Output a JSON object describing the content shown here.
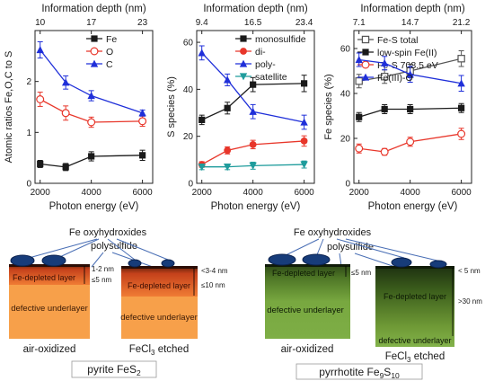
{
  "colors": {
    "black": "#1a1a1a",
    "red": "#e8362a",
    "blue": "#1f2fd9",
    "teal": "#1f9c9c",
    "gray": "#555555",
    "orange": "#f7a04a",
    "green": "#6f9a3a"
  },
  "chart_data": [
    {
      "type": "line",
      "top_xlabel": "Information depth (nm)",
      "top_ticks": [
        "10",
        "17",
        "23"
      ],
      "top_ticks_at": [
        2000,
        4000,
        6000
      ],
      "xlabel": "Photon energy (eV)",
      "ylabel": "Atomic ratios Fe,O,C to S",
      "xlim": [
        1800,
        6400
      ],
      "ylim": [
        0,
        3
      ],
      "xticks": [
        2000,
        4000,
        6000
      ],
      "yticks": [
        0,
        1,
        2
      ],
      "legend_position": "top-right",
      "series": [
        {
          "name": "Fe",
          "marker": "square",
          "color": "#1a1a1a",
          "x": [
            2000,
            3000,
            4000,
            6000
          ],
          "y": [
            0.38,
            0.32,
            0.53,
            0.55
          ],
          "err": [
            0.07,
            0.07,
            0.09,
            0.1
          ]
        },
        {
          "name": "O",
          "marker": "circle-open",
          "color": "#e8362a",
          "x": [
            2000,
            3000,
            4000,
            6000
          ],
          "y": [
            1.65,
            1.38,
            1.2,
            1.22
          ],
          "err": [
            0.14,
            0.14,
            0.1,
            0.1
          ]
        },
        {
          "name": "C",
          "marker": "triangle",
          "color": "#1f2fd9",
          "x": [
            2000,
            3000,
            4000,
            6000
          ],
          "y": [
            2.62,
            1.98,
            1.72,
            1.38
          ],
          "err": [
            0.16,
            0.13,
            0.1,
            0.06
          ]
        }
      ]
    },
    {
      "type": "line",
      "top_xlabel": "Information depth (nm)",
      "top_ticks": [
        "9.4",
        "16.5",
        "23.4"
      ],
      "top_ticks_at": [
        2000,
        4000,
        6000
      ],
      "xlabel": "Photon energy (eV)",
      "ylabel": "S species (%)",
      "xlim": [
        1800,
        6400
      ],
      "ylim": [
        0,
        65
      ],
      "xticks": [
        2000,
        4000,
        6000
      ],
      "yticks": [
        0,
        20,
        40,
        60
      ],
      "legend_position": "top-right",
      "series": [
        {
          "name": "monosulfide",
          "marker": "square",
          "color": "#1a1a1a",
          "x": [
            2000,
            3000,
            4000,
            6000
          ],
          "y": [
            27,
            32,
            42,
            42.5
          ],
          "err": [
            2,
            2.5,
            3,
            3.5
          ]
        },
        {
          "name": "di-",
          "marker": "circle",
          "color": "#e8362a",
          "x": [
            2000,
            3000,
            4000,
            6000
          ],
          "y": [
            8,
            14,
            16.5,
            18
          ],
          "err": [
            1.2,
            1.5,
            1.8,
            2.2
          ]
        },
        {
          "name": "poly-",
          "marker": "triangle",
          "color": "#1f2fd9",
          "x": [
            2000,
            3000,
            4000,
            6000
          ],
          "y": [
            55.5,
            44,
            30.5,
            26
          ],
          "err": [
            3,
            2.5,
            3,
            3
          ]
        },
        {
          "name": "satellite",
          "marker": "triangle-down",
          "color": "#1f9c9c",
          "x": [
            2000,
            3000,
            4000,
            6000
          ],
          "y": [
            7,
            7,
            7.5,
            8
          ],
          "err": [
            1.2,
            1.2,
            1.5,
            1.5
          ]
        }
      ]
    },
    {
      "type": "line",
      "top_xlabel": "Information depth (nm)",
      "top_ticks": [
        "7.1",
        "14.7",
        "21.2"
      ],
      "top_ticks_at": [
        2000,
        4000,
        6000
      ],
      "xlabel": "Photon energy (eV)",
      "ylabel": "Fe species (%)",
      "xlim": [
        1800,
        6400
      ],
      "ylim": [
        0,
        68
      ],
      "xticks": [
        2000,
        4000,
        6000
      ],
      "yticks": [
        0,
        20,
        40,
        60
      ],
      "legend_position": "top-left",
      "series": [
        {
          "name": "Fe-S total",
          "marker": "square-open",
          "color": "#555555",
          "x": [
            2000,
            3000,
            4000,
            6000
          ],
          "y": [
            45.5,
            47.5,
            50,
            55.5
          ],
          "err": [
            3,
            3,
            3,
            3.5
          ]
        },
        {
          "name": "low-spin Fe(II)",
          "marker": "square",
          "color": "#1a1a1a",
          "x": [
            2000,
            3000,
            4000,
            6000
          ],
          "y": [
            29.5,
            33,
            33,
            33.5
          ],
          "err": [
            2,
            2,
            2,
            2
          ]
        },
        {
          "name": "Fe-S 708.5 eV",
          "marker": "circle-open",
          "color": "#e8362a",
          "x": [
            2000,
            3000,
            4000,
            6000
          ],
          "y": [
            15.5,
            14,
            18.5,
            22
          ],
          "err": [
            2,
            1.5,
            2,
            2.5
          ]
        },
        {
          "name": "Fe(III)-O",
          "marker": "triangle",
          "color": "#1f2fd9",
          "x": [
            2000,
            3000,
            4000,
            6000
          ],
          "y": [
            55,
            53.5,
            48.5,
            44.5
          ],
          "err": [
            3,
            3,
            3.5,
            3.5
          ]
        }
      ]
    }
  ],
  "diagrams": {
    "pyrite": {
      "callout": "Fe oxyhydroxides",
      "polysulfide": "polysulfide",
      "air": {
        "depleted": "Fe-depleted layer",
        "under": "defective underlayer",
        "d1": "1-2 nm",
        "d2": "≤5 nm",
        "label": "air-oxidized"
      },
      "etched": {
        "depleted": "Fe-depleted layer",
        "under": "defective underlayer",
        "d1": "<3-4 nm",
        "d2": "≤10 nm",
        "label_pre": "FeCl",
        "label_sub": "3",
        "label_post": " etched"
      },
      "caption_pre": "pyrite FeS",
      "caption_sub": "2"
    },
    "pyrrhotite": {
      "callout": "Fe oxyhydroxides",
      "polysulfide": "polysulfide",
      "air": {
        "depleted": "Fe-depleted layer",
        "under": "defective underlayer",
        "d1": "≤5 nm",
        "label": "air-oxidized"
      },
      "etched": {
        "depleted": "Fe-depleted layer",
        "under": "defective underlayer",
        "d1": "< 5 nm",
        "d2": ">30 nm",
        "label_pre": "FeCl",
        "label_sub": "3",
        "label_post": " etched"
      },
      "caption_pre": "pyrrhotite Fe",
      "caption_sub1": "9",
      "caption_mid": "S",
      "caption_sub2": "10"
    }
  }
}
